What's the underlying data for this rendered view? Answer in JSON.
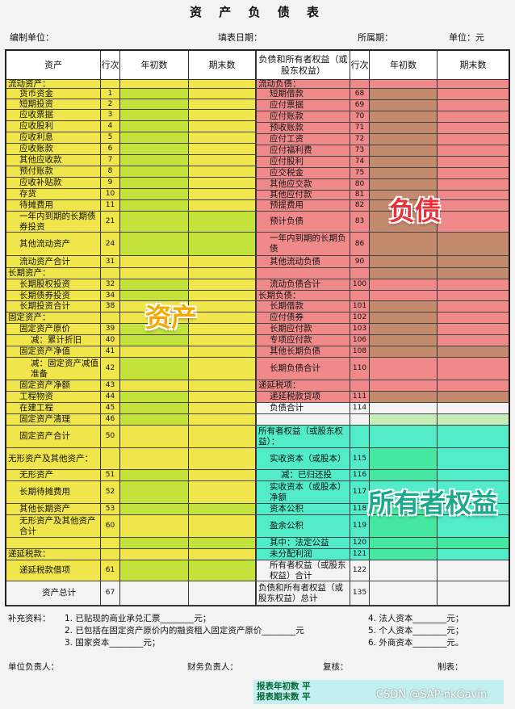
{
  "title": "资 产 负 债 表",
  "meta": {
    "unit_org": "编制单位：",
    "fill_date": "填表日期：",
    "period": "所属期：",
    "unit": "单位：元"
  },
  "colors": {
    "asset": "#f0e64c",
    "asset_cell": "#c4e23c",
    "liab": "#f08a8a",
    "liab_cell": "#c48a6e",
    "equity": "#52ecc8",
    "equity_cell": "#44e8a0",
    "total": "#f3f3f3"
  },
  "headers": {
    "assets": "资产",
    "line": "行次",
    "begin": "年初数",
    "end": "期末数",
    "liab": "负债和所有者权益（或股东权益）"
  },
  "left_rows": [
    {
      "label": "流动资产：",
      "no": "",
      "sec": "asset",
      "indent": 0,
      "hl": [
        0,
        0
      ]
    },
    {
      "label": "货币资金",
      "no": "1",
      "sec": "asset",
      "indent": 1,
      "hl": [
        1,
        0
      ]
    },
    {
      "label": "短期投资",
      "no": "2",
      "sec": "asset",
      "indent": 1,
      "hl": [
        1,
        0
      ]
    },
    {
      "label": "应收票据",
      "no": "3",
      "sec": "asset",
      "indent": 1,
      "hl": [
        1,
        0
      ]
    },
    {
      "label": "应收股利",
      "no": "4",
      "sec": "asset",
      "indent": 1,
      "hl": [
        1,
        0
      ]
    },
    {
      "label": "应收利息",
      "no": "5",
      "sec": "asset",
      "indent": 1,
      "hl": [
        1,
        0
      ]
    },
    {
      "label": "应收账款",
      "no": "6",
      "sec": "asset",
      "indent": 1,
      "hl": [
        1,
        0
      ]
    },
    {
      "label": "其他应收款",
      "no": "7",
      "sec": "asset",
      "indent": 1,
      "hl": [
        1,
        0
      ]
    },
    {
      "label": "预付账款",
      "no": "8",
      "sec": "asset",
      "indent": 1,
      "hl": [
        1,
        0
      ]
    },
    {
      "label": "应收补贴款",
      "no": "9",
      "sec": "asset",
      "indent": 1,
      "hl": [
        1,
        0
      ]
    },
    {
      "label": "存货",
      "no": "10",
      "sec": "asset",
      "indent": 1,
      "hl": [
        1,
        0
      ]
    },
    {
      "label": "待摊费用",
      "no": "11",
      "sec": "asset",
      "indent": 1,
      "hl": [
        1,
        0
      ]
    },
    {
      "label": "一年内到期的长期债券投资",
      "no": "21",
      "sec": "asset",
      "indent": 1,
      "hl": [
        1,
        1
      ]
    },
    {
      "label": "其他流动资产",
      "no": "24",
      "sec": "asset",
      "indent": 1,
      "hl": [
        1,
        1
      ]
    },
    {
      "label": "流动资产合计",
      "no": "31",
      "sec": "asset",
      "indent": 1,
      "hl": [
        0,
        0
      ]
    },
    {
      "label": "长期资产：",
      "no": "",
      "sec": "asset",
      "indent": 0,
      "hl": [
        0,
        0
      ]
    },
    {
      "label": "长期股权投资",
      "no": "32",
      "sec": "asset",
      "indent": 1,
      "hl": [
        1,
        0
      ]
    },
    {
      "label": "长期债券投资",
      "no": "34",
      "sec": "asset",
      "indent": 1,
      "hl": [
        1,
        0
      ]
    },
    {
      "label": "长期投资合计",
      "no": "38",
      "sec": "asset",
      "indent": 1,
      "hl": [
        0,
        0
      ]
    },
    {
      "label": "固定资产：",
      "no": "",
      "sec": "asset",
      "indent": 0,
      "hl": [
        0,
        0
      ]
    },
    {
      "label": "固定资产原价",
      "no": "39",
      "sec": "asset",
      "indent": 1,
      "hl": [
        1,
        0
      ]
    },
    {
      "label": "减：累计折旧",
      "no": "40",
      "sec": "asset",
      "indent": 2,
      "hl": [
        1,
        0
      ]
    },
    {
      "label": "固定资产净值",
      "no": "41",
      "sec": "asset",
      "indent": 1,
      "hl": [
        0,
        0
      ]
    },
    {
      "label": "减：固定资产减值准备",
      "no": "42",
      "sec": "asset",
      "indent": 2,
      "hl": [
        1,
        0
      ]
    },
    {
      "label": "固定资产净额",
      "no": "43",
      "sec": "asset",
      "indent": 1,
      "hl": [
        0,
        0
      ]
    },
    {
      "label": "工程物资",
      "no": "44",
      "sec": "asset",
      "indent": 1,
      "hl": [
        1,
        0
      ]
    },
    {
      "label": "在建工程",
      "no": "45",
      "sec": "asset",
      "indent": 1,
      "hl": [
        1,
        0
      ]
    },
    {
      "label": "固定资产清理",
      "no": "46",
      "sec": "asset",
      "indent": 1,
      "hl": [
        1,
        0
      ]
    },
    {
      "label": "固定资产合计",
      "no": "50",
      "sec": "asset",
      "indent": 1,
      "hl": [
        0,
        0
      ]
    },
    {
      "label": "无形资产及其他资产：",
      "no": "",
      "sec": "asset",
      "indent": 0,
      "hl": [
        0,
        0
      ]
    },
    {
      "label": "无形资产",
      "no": "51",
      "sec": "asset",
      "indent": 1,
      "hl": [
        1,
        0
      ]
    },
    {
      "label": "长期待摊费用",
      "no": "52",
      "sec": "asset",
      "indent": 1,
      "hl": [
        1,
        0
      ]
    },
    {
      "label": "其他长期资产",
      "no": "53",
      "sec": "asset",
      "indent": 1,
      "hl": [
        1,
        1
      ]
    },
    {
      "label": "无形资产及其他资产合计",
      "no": "60",
      "sec": "asset",
      "indent": 1,
      "hl": [
        0,
        0
      ]
    },
    {
      "label": "",
      "no": "",
      "sec": "asset",
      "indent": 0,
      "hl": [
        1,
        1
      ]
    },
    {
      "label": "递延税款：",
      "no": "",
      "sec": "asset",
      "indent": 0,
      "hl": [
        0,
        0
      ]
    },
    {
      "label": "递延税款借项",
      "no": "61",
      "sec": "asset",
      "indent": 1,
      "hl": [
        1,
        1
      ]
    },
    {
      "label": "资产总计",
      "no": "67",
      "sec": "total",
      "indent": 3,
      "hl": [
        0,
        0
      ]
    }
  ],
  "right_rows": [
    {
      "label": "流动负债：",
      "no": "",
      "sec": "liab",
      "indent": 0,
      "hl": [
        0,
        0
      ]
    },
    {
      "label": "短期借款",
      "no": "68",
      "sec": "liab",
      "indent": 1,
      "hl": [
        1,
        0
      ]
    },
    {
      "label": "应付票据",
      "no": "69",
      "sec": "liab",
      "indent": 1,
      "hl": [
        1,
        0
      ]
    },
    {
      "label": "应付账款",
      "no": "70",
      "sec": "liab",
      "indent": 1,
      "hl": [
        1,
        0
      ]
    },
    {
      "label": "预收账款",
      "no": "71",
      "sec": "liab",
      "indent": 1,
      "hl": [
        1,
        0
      ]
    },
    {
      "label": "应付工资",
      "no": "72",
      "sec": "liab",
      "indent": 1,
      "hl": [
        1,
        0
      ]
    },
    {
      "label": "应付福利费",
      "no": "73",
      "sec": "liab",
      "indent": 1,
      "hl": [
        1,
        0
      ]
    },
    {
      "label": "应付股利",
      "no": "74",
      "sec": "liab",
      "indent": 1,
      "hl": [
        1,
        0
      ]
    },
    {
      "label": "应交税金",
      "no": "75",
      "sec": "liab",
      "indent": 1,
      "hl": [
        1,
        0
      ]
    },
    {
      "label": "其他应交款",
      "no": "80",
      "sec": "liab",
      "indent": 1,
      "hl": [
        1,
        0
      ]
    },
    {
      "label": "其他应付款",
      "no": "81",
      "sec": "liab",
      "indent": 1,
      "hl": [
        1,
        0
      ]
    },
    {
      "label": "预提费用",
      "no": "82",
      "sec": "liab",
      "indent": 1,
      "hl": [
        1,
        0
      ]
    },
    {
      "label": "预计负债",
      "no": "83",
      "sec": "liab",
      "indent": 1,
      "hl": [
        1,
        0
      ]
    },
    {
      "label": "一年内到期的长期负债",
      "no": "86",
      "sec": "liab",
      "indent": 1,
      "hl": [
        1,
        1
      ]
    },
    {
      "label": "其他流动负债",
      "no": "90",
      "sec": "liab",
      "indent": 1,
      "hl": [
        1,
        1
      ]
    },
    {
      "label": "",
      "no": "",
      "sec": "liab",
      "indent": 0,
      "hl": [
        1,
        1
      ]
    },
    {
      "label": "流动负债合计",
      "no": "100",
      "sec": "liab",
      "indent": 1,
      "hl": [
        0,
        0
      ]
    },
    {
      "label": "长期负债：",
      "no": "",
      "sec": "liab",
      "indent": 0,
      "hl": [
        0,
        0
      ]
    },
    {
      "label": "长期借款",
      "no": "101",
      "sec": "liab",
      "indent": 1,
      "hl": [
        1,
        0
      ]
    },
    {
      "label": "应付债券",
      "no": "102",
      "sec": "liab",
      "indent": 1,
      "hl": [
        1,
        0
      ]
    },
    {
      "label": "长期应付款",
      "no": "103",
      "sec": "liab",
      "indent": 1,
      "hl": [
        1,
        0
      ]
    },
    {
      "label": "专项应付款",
      "no": "106",
      "sec": "liab",
      "indent": 1,
      "hl": [
        1,
        0
      ]
    },
    {
      "label": "其他长期负债",
      "no": "108",
      "sec": "liab",
      "indent": 1,
      "hl": [
        1,
        1
      ]
    },
    {
      "label": "长期负债合计",
      "no": "110",
      "sec": "liab",
      "indent": 1,
      "hl": [
        0,
        0
      ]
    },
    {
      "label": "递延税项：",
      "no": "",
      "sec": "liab",
      "indent": 0,
      "hl": [
        0,
        0
      ]
    },
    {
      "label": "递延税款贷项",
      "no": "111",
      "sec": "liab",
      "indent": 1,
      "hl": [
        1,
        1
      ]
    },
    {
      "label": "负债合计",
      "no": "114",
      "sec": "total",
      "indent": 1,
      "hl": [
        0,
        0
      ]
    },
    {
      "label": "",
      "no": "",
      "sec": "total",
      "indent": 0,
      "hl": [
        2,
        2
      ]
    },
    {
      "label": "所有者权益（或股东权益）：",
      "no": "",
      "sec": "equity",
      "indent": 0,
      "hl": [
        0,
        0
      ]
    },
    {
      "label": "实收资本（或股本）",
      "no": "115",
      "sec": "equity",
      "indent": 1,
      "hl": [
        1,
        0
      ]
    },
    {
      "label": "减：已归还投",
      "no": "116",
      "sec": "equity",
      "indent": 2,
      "hl": [
        1,
        0
      ]
    },
    {
      "label": "实收资本（或股本）净额",
      "no": "117",
      "sec": "equity",
      "indent": 1,
      "hl": [
        0,
        0
      ]
    },
    {
      "label": "资本公积",
      "no": "118",
      "sec": "equity",
      "indent": 1,
      "hl": [
        1,
        0
      ]
    },
    {
      "label": "盈余公积",
      "no": "119",
      "sec": "equity",
      "indent": 1,
      "hl": [
        1,
        0
      ]
    },
    {
      "label": "其中：法定公益",
      "no": "120",
      "sec": "equity",
      "indent": 1,
      "hl": [
        1,
        1
      ]
    },
    {
      "label": "未分配利润",
      "no": "121",
      "sec": "equity",
      "indent": 1,
      "hl": [
        1,
        0
      ]
    },
    {
      "label": "所有者权益（或股东权益）合计",
      "no": "122",
      "sec": "total",
      "indent": 1,
      "hl": [
        0,
        0
      ]
    },
    {
      "label": "负债和所有者权益（或股东权益）总计",
      "no": "135",
      "sec": "total",
      "indent": 0,
      "hl": [
        0,
        0
      ]
    }
  ],
  "overlays": {
    "assets": "资产",
    "liab": "负债",
    "equity": "所有者权益"
  },
  "supplement": {
    "label": "补充资料：",
    "i1": "1. 已贴现的商业承兑汇票________元；",
    "i2": "2. 已包括在固定资产原价内的融资租入固定资产原价________元",
    "i3": "3. 国家资本________元；",
    "i4": "4. 法人资本________元；",
    "i5": "5. 个人资本________元；",
    "i6": "6. 外商资本________元。"
  },
  "signatures": {
    "head": "单位负责人：",
    "finance": "财务负责人：",
    "review": "复核：",
    "maker": "制表："
  },
  "check": {
    "begin": "报表年初数  平",
    "end": "报表期末数  平"
  },
  "watermark": "CSDN @SAP-nkGavin"
}
